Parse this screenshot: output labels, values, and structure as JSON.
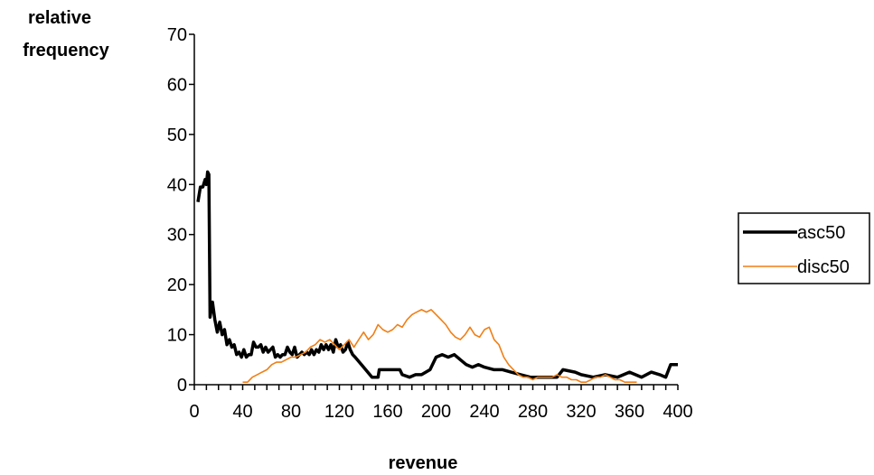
{
  "chart_data": {
    "type": "line",
    "ylabel_lines": [
      "relative",
      "frequency"
    ],
    "xlabel": "revenue",
    "xlim": [
      0,
      400
    ],
    "ylim": [
      0,
      70
    ],
    "x_ticks": [
      0,
      40,
      80,
      120,
      160,
      200,
      240,
      280,
      320,
      360,
      400
    ],
    "y_ticks": [
      0,
      10,
      20,
      30,
      40,
      50,
      60,
      70
    ],
    "grid": false,
    "legend_position": "right",
    "series": [
      {
        "name": "asc50",
        "color": "#000000",
        "stroke": "thick",
        "points": [
          [
            3,
            36.5
          ],
          [
            5,
            39.5
          ],
          [
            7,
            39.5
          ],
          [
            9,
            41
          ],
          [
            10,
            40
          ],
          [
            11,
            42.5
          ],
          [
            12,
            42
          ],
          [
            13,
            13.5
          ],
          [
            15,
            16.5
          ],
          [
            17,
            13
          ],
          [
            19,
            10.5
          ],
          [
            21,
            12.5
          ],
          [
            23,
            10
          ],
          [
            25,
            11
          ],
          [
            27,
            8
          ],
          [
            29,
            9
          ],
          [
            31,
            7.5
          ],
          [
            33,
            8
          ],
          [
            35,
            6
          ],
          [
            37,
            6.5
          ],
          [
            39,
            5.5
          ],
          [
            41,
            7
          ],
          [
            43,
            5.5
          ],
          [
            45,
            6
          ],
          [
            47,
            6
          ],
          [
            49,
            8.5
          ],
          [
            51,
            7.5
          ],
          [
            53,
            7.5
          ],
          [
            55,
            8
          ],
          [
            57,
            6.5
          ],
          [
            59,
            7.5
          ],
          [
            61,
            6.5
          ],
          [
            63,
            7
          ],
          [
            65,
            7.5
          ],
          [
            67,
            5.5
          ],
          [
            69,
            6
          ],
          [
            71,
            5.5
          ],
          [
            73,
            6
          ],
          [
            75,
            6
          ],
          [
            77,
            7.5
          ],
          [
            79,
            6.5
          ],
          [
            81,
            6
          ],
          [
            83,
            7.5
          ],
          [
            85,
            5.5
          ],
          [
            87,
            6
          ],
          [
            89,
            6.5
          ],
          [
            91,
            6
          ],
          [
            93,
            6.5
          ],
          [
            95,
            6
          ],
          [
            97,
            7
          ],
          [
            99,
            6
          ],
          [
            101,
            7
          ],
          [
            103,
            6.5
          ],
          [
            105,
            8
          ],
          [
            107,
            7
          ],
          [
            109,
            8
          ],
          [
            111,
            7
          ],
          [
            113,
            8
          ],
          [
            115,
            6.5
          ],
          [
            117,
            9
          ],
          [
            119,
            7.5
          ],
          [
            121,
            8
          ],
          [
            123,
            6.5
          ],
          [
            125,
            7
          ],
          [
            127,
            8.5
          ],
          [
            129,
            7
          ],
          [
            131,
            6
          ],
          [
            133,
            5.5
          ],
          [
            140,
            3.5
          ],
          [
            147,
            1.5
          ],
          [
            152,
            1.5
          ],
          [
            153,
            3
          ],
          [
            170,
            3
          ],
          [
            172,
            2
          ],
          [
            178,
            1.5
          ],
          [
            183,
            2
          ],
          [
            188,
            2
          ],
          [
            195,
            3
          ],
          [
            200,
            5.5
          ],
          [
            205,
            6
          ],
          [
            210,
            5.5
          ],
          [
            215,
            6
          ],
          [
            220,
            5
          ],
          [
            225,
            4
          ],
          [
            230,
            3.5
          ],
          [
            235,
            4
          ],
          [
            240,
            3.5
          ],
          [
            248,
            3
          ],
          [
            255,
            3
          ],
          [
            262,
            2.5
          ],
          [
            270,
            2
          ],
          [
            278,
            1.5
          ],
          [
            290,
            1.5
          ],
          [
            300,
            1.5
          ],
          [
            305,
            3
          ],
          [
            315,
            2.5
          ],
          [
            320,
            2
          ],
          [
            330,
            1.5
          ],
          [
            340,
            2
          ],
          [
            350,
            1.5
          ],
          [
            360,
            2.5
          ],
          [
            370,
            1.5
          ],
          [
            378,
            2.5
          ],
          [
            385,
            2
          ],
          [
            390,
            1.5
          ],
          [
            394,
            4
          ],
          [
            400,
            4
          ]
        ]
      },
      {
        "name": "disc50",
        "color": "#f07f16",
        "stroke": "thin",
        "points": [
          [
            40,
            0.5
          ],
          [
            44,
            0.5
          ],
          [
            48,
            1.5
          ],
          [
            52,
            2
          ],
          [
            56,
            2.5
          ],
          [
            60,
            3
          ],
          [
            64,
            4
          ],
          [
            68,
            4.5
          ],
          [
            72,
            4.5
          ],
          [
            76,
            5
          ],
          [
            80,
            5.5
          ],
          [
            84,
            5.5
          ],
          [
            88,
            6
          ],
          [
            92,
            6.5
          ],
          [
            96,
            7.5
          ],
          [
            100,
            8
          ],
          [
            104,
            9
          ],
          [
            108,
            8.5
          ],
          [
            112,
            9
          ],
          [
            116,
            8
          ],
          [
            120,
            7
          ],
          [
            124,
            8
          ],
          [
            128,
            9
          ],
          [
            132,
            7.5
          ],
          [
            136,
            9
          ],
          [
            140,
            10.5
          ],
          [
            144,
            9
          ],
          [
            148,
            10
          ],
          [
            152,
            12
          ],
          [
            156,
            11
          ],
          [
            160,
            10.5
          ],
          [
            164,
            11
          ],
          [
            168,
            12
          ],
          [
            172,
            11.5
          ],
          [
            176,
            13
          ],
          [
            180,
            14
          ],
          [
            184,
            14.5
          ],
          [
            188,
            15
          ],
          [
            192,
            14.5
          ],
          [
            196,
            15
          ],
          [
            200,
            14
          ],
          [
            204,
            13
          ],
          [
            208,
            12
          ],
          [
            212,
            10.5
          ],
          [
            216,
            9.5
          ],
          [
            220,
            9
          ],
          [
            224,
            10
          ],
          [
            228,
            11.5
          ],
          [
            232,
            10
          ],
          [
            236,
            9.5
          ],
          [
            240,
            11
          ],
          [
            244,
            11.5
          ],
          [
            248,
            9
          ],
          [
            252,
            8
          ],
          [
            256,
            5.5
          ],
          [
            260,
            4
          ],
          [
            264,
            3
          ],
          [
            268,
            2
          ],
          [
            272,
            1.5
          ],
          [
            276,
            1.5
          ],
          [
            280,
            1
          ],
          [
            284,
            1.5
          ],
          [
            288,
            1.5
          ],
          [
            292,
            1.5
          ],
          [
            296,
            1.5
          ],
          [
            300,
            2
          ],
          [
            304,
            1.5
          ],
          [
            308,
            1.5
          ],
          [
            312,
            1
          ],
          [
            316,
            1
          ],
          [
            320,
            0.5
          ],
          [
            324,
            0.5
          ],
          [
            328,
            1
          ],
          [
            332,
            1.5
          ],
          [
            336,
            1.5
          ],
          [
            340,
            2
          ],
          [
            344,
            1.5
          ],
          [
            348,
            1
          ],
          [
            352,
            1
          ],
          [
            356,
            0.5
          ],
          [
            360,
            0.5
          ],
          [
            364,
            0.5
          ],
          [
            366,
            0.5
          ]
        ]
      }
    ]
  }
}
